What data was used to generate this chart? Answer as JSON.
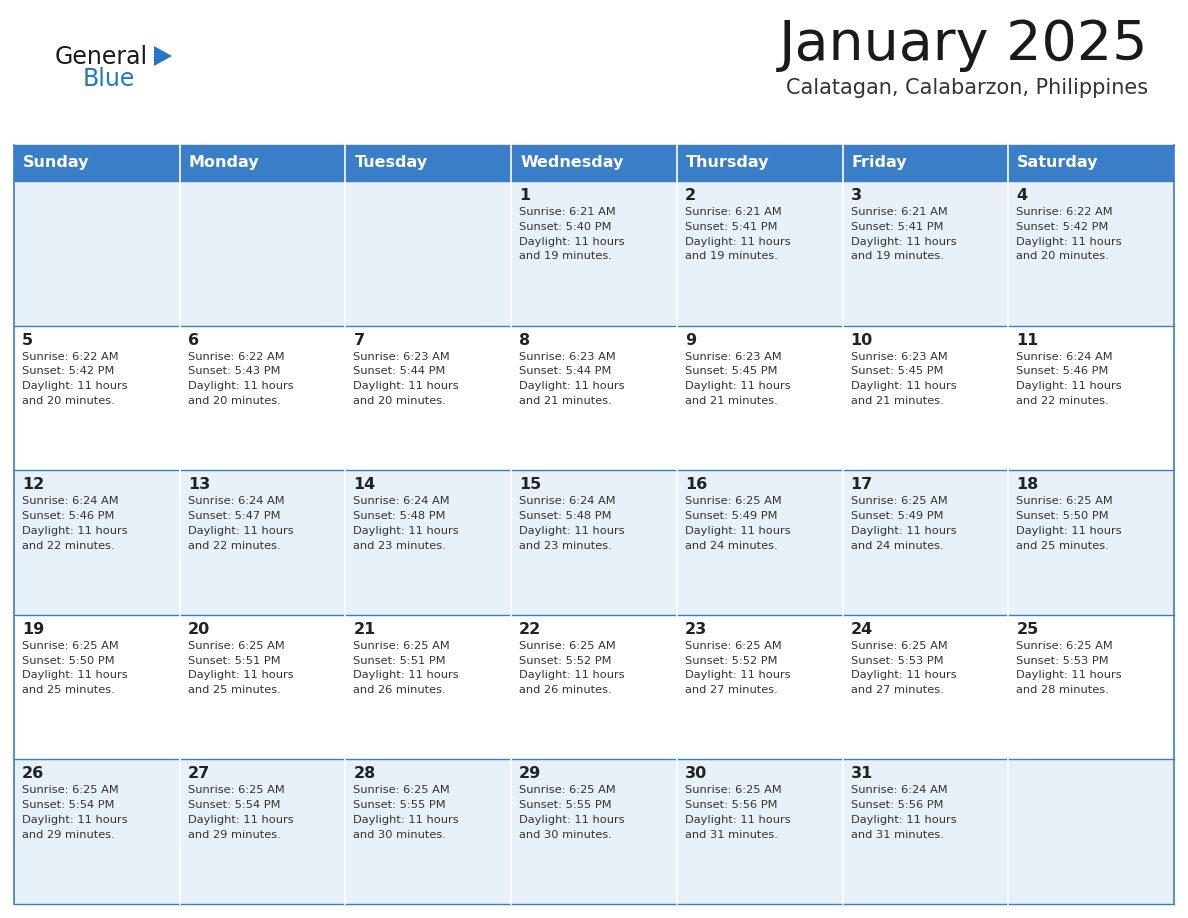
{
  "title": "January 2025",
  "subtitle": "Calatagan, Calabarzon, Philippines",
  "days_of_week": [
    "Sunday",
    "Monday",
    "Tuesday",
    "Wednesday",
    "Thursday",
    "Friday",
    "Saturday"
  ],
  "header_bg": "#3a7ec8",
  "header_text": "#ffffff",
  "row_bg_light": "#e8f0f8",
  "row_bg_white": "#ffffff",
  "cell_border_color": "#3a7ec8",
  "day_num_color": "#222222",
  "text_color": "#333333",
  "title_color": "#1a1a1a",
  "subtitle_color": "#333333",
  "logo_general_color": "#1a1a1a",
  "logo_blue_color": "#2477c0",
  "calendar_data": [
    [
      null,
      null,
      null,
      {
        "day": 1,
        "sunrise": "6:21 AM",
        "sunset": "5:40 PM",
        "daylight": "11 hours and 19 minutes."
      },
      {
        "day": 2,
        "sunrise": "6:21 AM",
        "sunset": "5:41 PM",
        "daylight": "11 hours and 19 minutes."
      },
      {
        "day": 3,
        "sunrise": "6:21 AM",
        "sunset": "5:41 PM",
        "daylight": "11 hours and 19 minutes."
      },
      {
        "day": 4,
        "sunrise": "6:22 AM",
        "sunset": "5:42 PM",
        "daylight": "11 hours and 20 minutes."
      }
    ],
    [
      {
        "day": 5,
        "sunrise": "6:22 AM",
        "sunset": "5:42 PM",
        "daylight": "11 hours and 20 minutes."
      },
      {
        "day": 6,
        "sunrise": "6:22 AM",
        "sunset": "5:43 PM",
        "daylight": "11 hours and 20 minutes."
      },
      {
        "day": 7,
        "sunrise": "6:23 AM",
        "sunset": "5:44 PM",
        "daylight": "11 hours and 20 minutes."
      },
      {
        "day": 8,
        "sunrise": "6:23 AM",
        "sunset": "5:44 PM",
        "daylight": "11 hours and 21 minutes."
      },
      {
        "day": 9,
        "sunrise": "6:23 AM",
        "sunset": "5:45 PM",
        "daylight": "11 hours and 21 minutes."
      },
      {
        "day": 10,
        "sunrise": "6:23 AM",
        "sunset": "5:45 PM",
        "daylight": "11 hours and 21 minutes."
      },
      {
        "day": 11,
        "sunrise": "6:24 AM",
        "sunset": "5:46 PM",
        "daylight": "11 hours and 22 minutes."
      }
    ],
    [
      {
        "day": 12,
        "sunrise": "6:24 AM",
        "sunset": "5:46 PM",
        "daylight": "11 hours and 22 minutes."
      },
      {
        "day": 13,
        "sunrise": "6:24 AM",
        "sunset": "5:47 PM",
        "daylight": "11 hours and 22 minutes."
      },
      {
        "day": 14,
        "sunrise": "6:24 AM",
        "sunset": "5:48 PM",
        "daylight": "11 hours and 23 minutes."
      },
      {
        "day": 15,
        "sunrise": "6:24 AM",
        "sunset": "5:48 PM",
        "daylight": "11 hours and 23 minutes."
      },
      {
        "day": 16,
        "sunrise": "6:25 AM",
        "sunset": "5:49 PM",
        "daylight": "11 hours and 24 minutes."
      },
      {
        "day": 17,
        "sunrise": "6:25 AM",
        "sunset": "5:49 PM",
        "daylight": "11 hours and 24 minutes."
      },
      {
        "day": 18,
        "sunrise": "6:25 AM",
        "sunset": "5:50 PM",
        "daylight": "11 hours and 25 minutes."
      }
    ],
    [
      {
        "day": 19,
        "sunrise": "6:25 AM",
        "sunset": "5:50 PM",
        "daylight": "11 hours and 25 minutes."
      },
      {
        "day": 20,
        "sunrise": "6:25 AM",
        "sunset": "5:51 PM",
        "daylight": "11 hours and 25 minutes."
      },
      {
        "day": 21,
        "sunrise": "6:25 AM",
        "sunset": "5:51 PM",
        "daylight": "11 hours and 26 minutes."
      },
      {
        "day": 22,
        "sunrise": "6:25 AM",
        "sunset": "5:52 PM",
        "daylight": "11 hours and 26 minutes."
      },
      {
        "day": 23,
        "sunrise": "6:25 AM",
        "sunset": "5:52 PM",
        "daylight": "11 hours and 27 minutes."
      },
      {
        "day": 24,
        "sunrise": "6:25 AM",
        "sunset": "5:53 PM",
        "daylight": "11 hours and 27 minutes."
      },
      {
        "day": 25,
        "sunrise": "6:25 AM",
        "sunset": "5:53 PM",
        "daylight": "11 hours and 28 minutes."
      }
    ],
    [
      {
        "day": 26,
        "sunrise": "6:25 AM",
        "sunset": "5:54 PM",
        "daylight": "11 hours and 29 minutes."
      },
      {
        "day": 27,
        "sunrise": "6:25 AM",
        "sunset": "5:54 PM",
        "daylight": "11 hours and 29 minutes."
      },
      {
        "day": 28,
        "sunrise": "6:25 AM",
        "sunset": "5:55 PM",
        "daylight": "11 hours and 30 minutes."
      },
      {
        "day": 29,
        "sunrise": "6:25 AM",
        "sunset": "5:55 PM",
        "daylight": "11 hours and 30 minutes."
      },
      {
        "day": 30,
        "sunrise": "6:25 AM",
        "sunset": "5:56 PM",
        "daylight": "11 hours and 31 minutes."
      },
      {
        "day": 31,
        "sunrise": "6:24 AM",
        "sunset": "5:56 PM",
        "daylight": "11 hours and 31 minutes."
      },
      null
    ]
  ]
}
